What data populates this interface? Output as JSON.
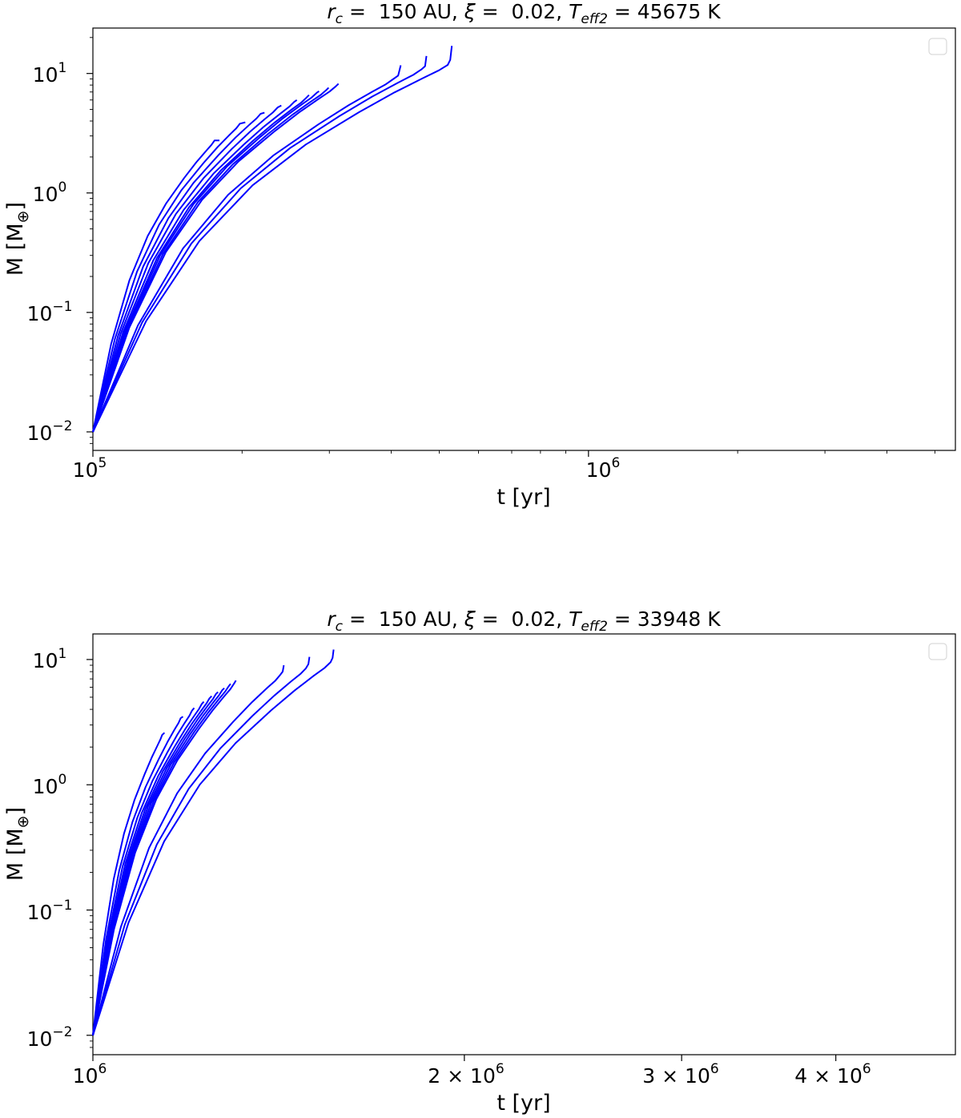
{
  "figure": {
    "panels": [
      {
        "title": {
          "rc_var": "r",
          "rc_sub": "c",
          "rc_text": " =  150 AU, ",
          "xi_var": "ξ",
          "xi_text": " =  0.02, ",
          "teff_var": "T",
          "teff_sub": "eff2",
          "teff_text": " = 45675 K"
        },
        "xlabel": "t [yr]",
        "ylabel": "M [M",
        "ylabel_sub": "⊕",
        "ylabel_close": "]"
      },
      {
        "title": {
          "rc_var": "r",
          "rc_sub": "c",
          "rc_text": " =  150 AU, ",
          "xi_var": "ξ",
          "xi_text": " =  0.02, ",
          "teff_var": "T",
          "teff_sub": "eff2",
          "teff_text": " = 33948 K"
        },
        "xlabel": "t [yr]",
        "ylabel": "M [M",
        "ylabel_sub": "⊕",
        "ylabel_close": "]"
      }
    ]
  },
  "chart_data": [
    {
      "type": "line",
      "title": "r_c = 150 AU, ξ = 0.02, T_eff2 = 45675 K",
      "xlabel": "t [yr]",
      "ylabel": "M [M⊕]",
      "xscale": "log",
      "yscale": "log",
      "xlim": [
        100000,
        5500000
      ],
      "ylim": [
        0.007,
        24
      ],
      "x_ticks": [
        {
          "value": 100000,
          "base": "10",
          "exp": "5"
        },
        {
          "value": 1000000,
          "base": "10",
          "exp": "6"
        }
      ],
      "y_ticks": [
        {
          "value": 0.01,
          "base": "10",
          "exp": "−2"
        },
        {
          "value": 0.1,
          "base": "10",
          "exp": "−1"
        },
        {
          "value": 1,
          "base": "10",
          "exp": "0"
        },
        {
          "value": 10,
          "base": "10",
          "exp": "1"
        }
      ],
      "legend": "top-right, empty",
      "grid": false,
      "line_color": "#0000ff",
      "curve_shape": [
        [
          0,
          0
        ],
        [
          0.15,
          0.302
        ],
        [
          0.3,
          0.52
        ],
        [
          0.45,
          0.672
        ],
        [
          0.6,
          0.783
        ],
        [
          0.75,
          0.871
        ],
        [
          0.85,
          0.925
        ],
        [
          0.93,
          0.964
        ],
        [
          0.975,
          0.985
        ],
        [
          1,
          1
        ]
      ],
      "series": [
        {
          "x_end": 176000,
          "m_end": 2.75,
          "hook": [
            [
              176000,
              2.75
            ],
            [
              180000,
              2.75
            ]
          ]
        },
        {
          "x_end": 198000,
          "m_end": 3.8,
          "hook": [
            [
              198000,
              3.8
            ],
            [
              203000,
              3.9
            ]
          ]
        },
        {
          "x_end": 218000,
          "m_end": 4.6,
          "hook": [
            [
              218000,
              4.6
            ],
            [
              222000,
              4.7
            ]
          ]
        },
        {
          "x_end": 236000,
          "m_end": 5.2,
          "hook": [
            [
              236000,
              5.2
            ],
            [
              240000,
              5.4
            ]
          ]
        },
        {
          "x_end": 255000,
          "m_end": 5.8,
          "hook": [
            [
              255000,
              5.8
            ],
            [
              258000,
              6.0
            ]
          ]
        },
        {
          "x_end": 270000,
          "m_end": 6.3,
          "hook": [
            [
              270000,
              6.3
            ],
            [
              273000,
              6.6
            ]
          ]
        },
        {
          "x_end": 283000,
          "m_end": 6.9,
          "hook": [
            [
              283000,
              6.9
            ],
            [
              286000,
              7.1
            ]
          ]
        },
        {
          "x_end": 296000,
          "m_end": 7.3,
          "hook": [
            [
              296000,
              7.3
            ],
            [
              299000,
              7.6
            ]
          ]
        },
        {
          "x_end": 309000,
          "m_end": 7.8,
          "hook": [
            [
              309000,
              7.8
            ],
            [
              313000,
              8.2
            ]
          ]
        },
        {
          "x_end": 404000,
          "m_end": 9.0,
          "hook": [
            [
              404000,
              9.0
            ],
            [
              413000,
              9.6
            ],
            [
              418000,
              11.7
            ]
          ]
        },
        {
          "x_end": 460000,
          "m_end": 10.8,
          "hook": [
            [
              460000,
              10.8
            ],
            [
              468000,
              11.5
            ],
            [
              471000,
              14.0
            ]
          ]
        },
        {
          "x_end": 520000,
          "m_end": 11.8,
          "hook": [
            [
              520000,
              11.8
            ],
            [
              526000,
              13.0
            ],
            [
              530000,
              17.0
            ]
          ]
        }
      ]
    },
    {
      "type": "line",
      "title": "r_c = 150 AU, ξ = 0.02, T_eff2 = 33948 K",
      "xlabel": "t [yr]",
      "ylabel": "M [M⊕]",
      "xscale": "log",
      "yscale": "log",
      "xlim": [
        1000000,
        5000000
      ],
      "ylim": [
        0.007,
        16
      ],
      "x_ticks": [
        {
          "value": 1000000,
          "label": "10",
          "base": "10",
          "exp": "6"
        },
        {
          "value": 2000000,
          "label": "2 × 10",
          "base": "2 × 10",
          "exp": "6"
        },
        {
          "value": 3000000,
          "label": "3 × 10",
          "base": "3 × 10",
          "exp": "6"
        },
        {
          "value": 4000000,
          "label": "4 × 10",
          "base": "4 × 10",
          "exp": "6"
        }
      ],
      "y_ticks": [
        {
          "value": 0.01,
          "base": "10",
          "exp": "−2"
        },
        {
          "value": 0.1,
          "base": "10",
          "exp": "−1"
        },
        {
          "value": 1,
          "base": "10",
          "exp": "0"
        },
        {
          "value": 10,
          "base": "10",
          "exp": "1"
        }
      ],
      "legend": "top-right, empty",
      "grid": false,
      "line_color": "#0000ff",
      "curve_shape": [
        [
          0,
          0
        ],
        [
          0.15,
          0.302
        ],
        [
          0.3,
          0.52
        ],
        [
          0.45,
          0.672
        ],
        [
          0.6,
          0.783
        ],
        [
          0.75,
          0.871
        ],
        [
          0.85,
          0.925
        ],
        [
          0.93,
          0.964
        ],
        [
          0.975,
          0.985
        ],
        [
          1,
          1
        ]
      ],
      "series": [
        {
          "x_end": 1138000,
          "m_end": 2.5,
          "hook": [
            [
              1138000,
              2.5
            ],
            [
              1143000,
              2.6
            ]
          ]
        },
        {
          "x_end": 1178000,
          "m_end": 3.4,
          "hook": [
            [
              1178000,
              3.4
            ],
            [
              1183000,
              3.5
            ]
          ]
        },
        {
          "x_end": 1203000,
          "m_end": 3.9,
          "hook": [
            [
              1203000,
              3.9
            ],
            [
              1208000,
              4.1
            ]
          ]
        },
        {
          "x_end": 1225000,
          "m_end": 4.4,
          "hook": [
            [
              1225000,
              4.4
            ],
            [
              1230000,
              4.6
            ]
          ]
        },
        {
          "x_end": 1243000,
          "m_end": 4.9,
          "hook": [
            [
              1243000,
              4.9
            ],
            [
              1248000,
              5.1
            ]
          ]
        },
        {
          "x_end": 1258000,
          "m_end": 5.3,
          "hook": [
            [
              1258000,
              5.3
            ],
            [
              1263000,
              5.5
            ]
          ]
        },
        {
          "x_end": 1273000,
          "m_end": 5.7,
          "hook": [
            [
              1273000,
              5.7
            ],
            [
              1278000,
              5.9
            ]
          ]
        },
        {
          "x_end": 1288000,
          "m_end": 6.1,
          "hook": [
            [
              1288000,
              6.1
            ],
            [
              1293000,
              6.4
            ]
          ]
        },
        {
          "x_end": 1301000,
          "m_end": 6.4,
          "hook": [
            [
              1301000,
              6.4
            ],
            [
              1306000,
              6.8
            ]
          ]
        },
        {
          "x_end": 1418000,
          "m_end": 7.5,
          "hook": [
            [
              1418000,
              7.5
            ],
            [
              1425000,
              8.0
            ],
            [
              1428000,
              9.0
            ]
          ]
        },
        {
          "x_end": 1488000,
          "m_end": 8.5,
          "hook": [
            [
              1488000,
              8.5
            ],
            [
              1495000,
              9.2
            ],
            [
              1498000,
              10.5
            ]
          ]
        },
        {
          "x_end": 1558000,
          "m_end": 9.5,
          "hook": [
            [
              1558000,
              9.5
            ],
            [
              1564000,
              10.3
            ],
            [
              1567000,
              12.0
            ]
          ]
        }
      ]
    }
  ]
}
